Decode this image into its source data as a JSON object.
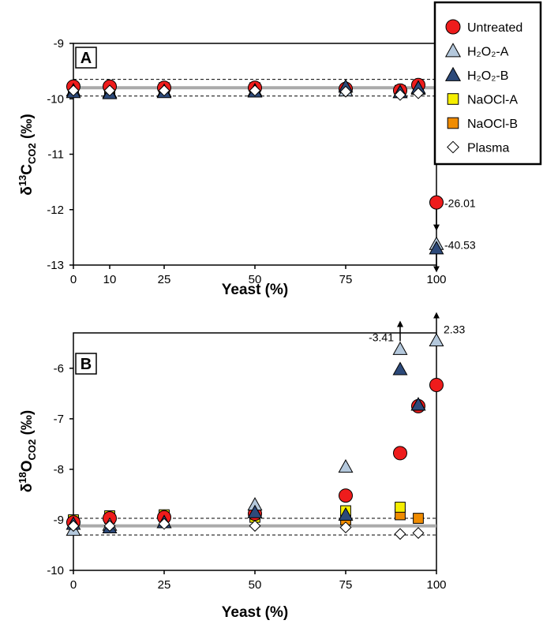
{
  "legend": {
    "entries": [
      {
        "key": "untreated",
        "label": "Untreated",
        "marker": "circle",
        "color": "#ee1c1c"
      },
      {
        "key": "h2o2a",
        "label": "H₂O₂-A",
        "marker": "triangle",
        "color": "#b4c8dc"
      },
      {
        "key": "h2o2b",
        "label": "H₂O₂-B",
        "marker": "triangle",
        "color": "#2d4a7a"
      },
      {
        "key": "naocla",
        "label": "NaOCl-A",
        "marker": "square",
        "color": "#f5ee00"
      },
      {
        "key": "naoclb",
        "label": "NaOCl-B",
        "marker": "square",
        "color": "#f08c00"
      },
      {
        "key": "plasma",
        "label": "Plasma",
        "marker": "diamond",
        "color": "#ffffff"
      }
    ]
  },
  "chart_data": [
    {
      "type": "scatter",
      "panel": "A",
      "xlabel": "Yeast (%)",
      "ylabel": "δ13CCO2 (‰)",
      "xlim": [
        0,
        100
      ],
      "ylim": [
        -13,
        -9
      ],
      "x_ticks": [
        0,
        10,
        25,
        50,
        75,
        100
      ],
      "x_tick_labels": [
        "0",
        "10",
        "25",
        "50",
        "75",
        "100"
      ],
      "y_ticks": [
        -9,
        -10,
        -11,
        -12,
        -13
      ],
      "y_tick_labels": [
        "-9",
        "-10",
        "-11",
        "-12",
        "-13"
      ],
      "reference_line": -9.8,
      "reference_band": [
        -9.65,
        -9.95
      ],
      "series": [
        {
          "key": "untreated",
          "name": "Untreated",
          "x": [
            0,
            10,
            25,
            50,
            75,
            90,
            95,
            100
          ],
          "y": [
            -9.78,
            -9.78,
            -9.8,
            -9.8,
            -9.82,
            -9.85,
            -9.75,
            -11.87
          ]
        },
        {
          "key": "h2o2a",
          "name": "H₂O₂-A",
          "x": [
            0,
            10,
            25,
            50,
            75,
            90,
            95,
            100
          ],
          "y": [
            -9.85,
            -9.88,
            -9.86,
            -9.85,
            -9.85,
            -9.88,
            -9.82,
            -12.62
          ]
        },
        {
          "key": "h2o2b",
          "name": "H₂O₂-B",
          "x": [
            0,
            10,
            25,
            50,
            75,
            90,
            95,
            100
          ],
          "y": [
            -9.88,
            -9.9,
            -9.88,
            -9.87,
            -9.78,
            -9.88,
            -9.8,
            -12.7
          ]
        },
        {
          "key": "naocla",
          "name": "NaOCl-A",
          "x": [
            0,
            10,
            25,
            50,
            75,
            90,
            95
          ],
          "y": [
            -9.8,
            -9.82,
            -9.8,
            -9.8,
            -9.85,
            -9.85,
            -9.83
          ]
        },
        {
          "key": "naoclb",
          "name": "NaOCl-B",
          "x": [
            0,
            10,
            25,
            50,
            75,
            90,
            95
          ],
          "y": [
            -9.82,
            -9.82,
            -9.82,
            -9.82,
            -9.85,
            -9.85,
            -9.82
          ]
        },
        {
          "key": "plasma",
          "name": "Plasma",
          "x": [
            0,
            10,
            25,
            50,
            75,
            90,
            95
          ],
          "y": [
            -9.85,
            -9.85,
            -9.85,
            -9.85,
            -9.87,
            -9.93,
            -9.9
          ]
        }
      ],
      "annotations": [
        {
          "text": "-26.01",
          "x": 100,
          "y": -11.87,
          "arrow": "down"
        },
        {
          "text": "-40.53",
          "x": 100,
          "y": -12.62,
          "arrow": "down"
        }
      ]
    },
    {
      "type": "scatter",
      "panel": "B",
      "xlabel": "Yeast (%)",
      "ylabel": "δ18OCO2 (‰)",
      "xlim": [
        0,
        100
      ],
      "ylim": [
        -10,
        -5.3
      ],
      "x_ticks": [
        0,
        25,
        50,
        75,
        100
      ],
      "x_tick_labels": [
        "0",
        "25",
        "50",
        "75",
        "100"
      ],
      "y_ticks": [
        -6,
        -7,
        -8,
        -9,
        -10
      ],
      "y_tick_labels": [
        "-6",
        "-7",
        "-8",
        "-9",
        "-10"
      ],
      "reference_line": -9.12,
      "reference_band": [
        -8.97,
        -9.3
      ],
      "series": [
        {
          "key": "untreated",
          "name": "Untreated",
          "x": [
            0,
            10,
            25,
            50,
            75,
            90,
            95,
            100
          ],
          "y": [
            -9.05,
            -8.97,
            -8.95,
            -8.88,
            -8.52,
            -7.68,
            -6.75,
            -6.33
          ]
        },
        {
          "key": "h2o2a",
          "name": "H₂O₂-A",
          "x": [
            0,
            10,
            25,
            50,
            75,
            90,
            95,
            100
          ],
          "y": [
            -9.2,
            -9.1,
            -9.05,
            -8.7,
            -7.95,
            -5.62,
            -6.72,
            -5.45
          ]
        },
        {
          "key": "h2o2b",
          "name": "H₂O₂-B",
          "x": [
            0,
            10,
            25,
            50,
            75,
            90,
            95
          ],
          "y": [
            -9.08,
            -9.15,
            -9.05,
            -8.85,
            -8.9,
            -6.02,
            -6.72
          ]
        },
        {
          "key": "naocla",
          "name": "NaOCl-A",
          "x": [
            0,
            10,
            25,
            50,
            75,
            90
          ],
          "y": [
            -9.0,
            -8.92,
            -8.9,
            -8.95,
            -8.82,
            -8.75
          ]
        },
        {
          "key": "naoclb",
          "name": "NaOCl-B",
          "x": [
            0,
            10,
            25,
            50,
            75,
            90,
            95
          ],
          "y": [
            -9.02,
            -8.97,
            -8.92,
            -8.9,
            -9.0,
            -8.9,
            -8.97
          ]
        },
        {
          "key": "plasma",
          "name": "Plasma",
          "x": [
            0,
            10,
            25,
            50,
            75,
            90,
            95
          ],
          "y": [
            -9.12,
            -9.12,
            -9.08,
            -9.12,
            -9.15,
            -9.28,
            -9.26
          ]
        }
      ],
      "annotations": [
        {
          "text": "-3.41",
          "x": 90,
          "y": -5.62,
          "arrow": "up"
        },
        {
          "text": "2.33",
          "x": 100,
          "y": -5.45,
          "arrow": "up"
        }
      ]
    }
  ]
}
